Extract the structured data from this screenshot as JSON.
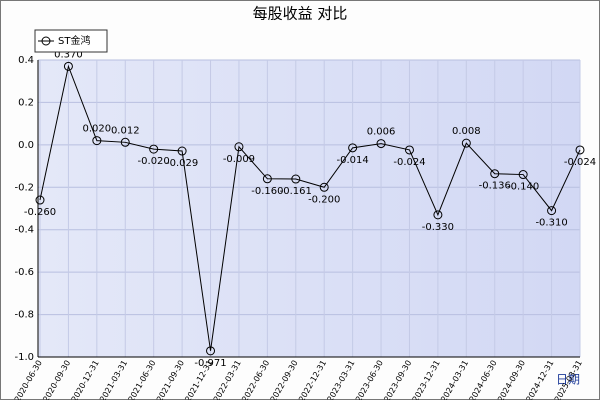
{
  "chart_data": {
    "type": "line",
    "title": "每股收益 对比",
    "x_label": "日期",
    "categories": [
      "2020-06-30",
      "2020-09-30",
      "2020-12-31",
      "2021-03-31",
      "2021-06-30",
      "2021-09-30",
      "2021-12-31",
      "2022-03-31",
      "2022-06-30",
      "2022-09-30",
      "2022-12-31",
      "2023-03-31",
      "2023-06-30",
      "2023-09-30",
      "2023-12-31",
      "2024-03-31",
      "2024-06-30",
      "2024-09-30",
      "2024-12-31",
      "2025-03-31"
    ],
    "series": [
      {
        "name": "ST金鸿",
        "color": "#000000",
        "values": [
          -0.26,
          0.37,
          0.02,
          0.012,
          -0.02,
          -0.029,
          -0.971,
          -0.009,
          -0.16,
          -0.161,
          -0.2,
          -0.014,
          0.006,
          -0.024,
          -0.33,
          0.008,
          -0.136,
          -0.14,
          -0.31,
          -0.024
        ],
        "value_labels": [
          "-0.260",
          "0.370",
          "0.020",
          "0.012",
          "-0.020",
          "-0.029",
          "-0.971",
          "-0.009",
          "-0.160",
          "-0.161",
          "-0.200",
          "-0.014",
          "0.006",
          "-0.024",
          "-0.330",
          "0.008",
          "-0.136",
          "-0.140",
          "-0.310",
          "-0.024"
        ]
      }
    ],
    "ylim": [
      -1.0,
      0.4
    ],
    "yticks": [
      0.4,
      0.2,
      {
        "value": 0,
        "label": "0.0"
      },
      -0.2,
      -0.4,
      -0.6,
      -0.8,
      {
        "value": -1.0,
        "label": "-1.0"
      }
    ],
    "grid": true,
    "legend": "top-left"
  }
}
